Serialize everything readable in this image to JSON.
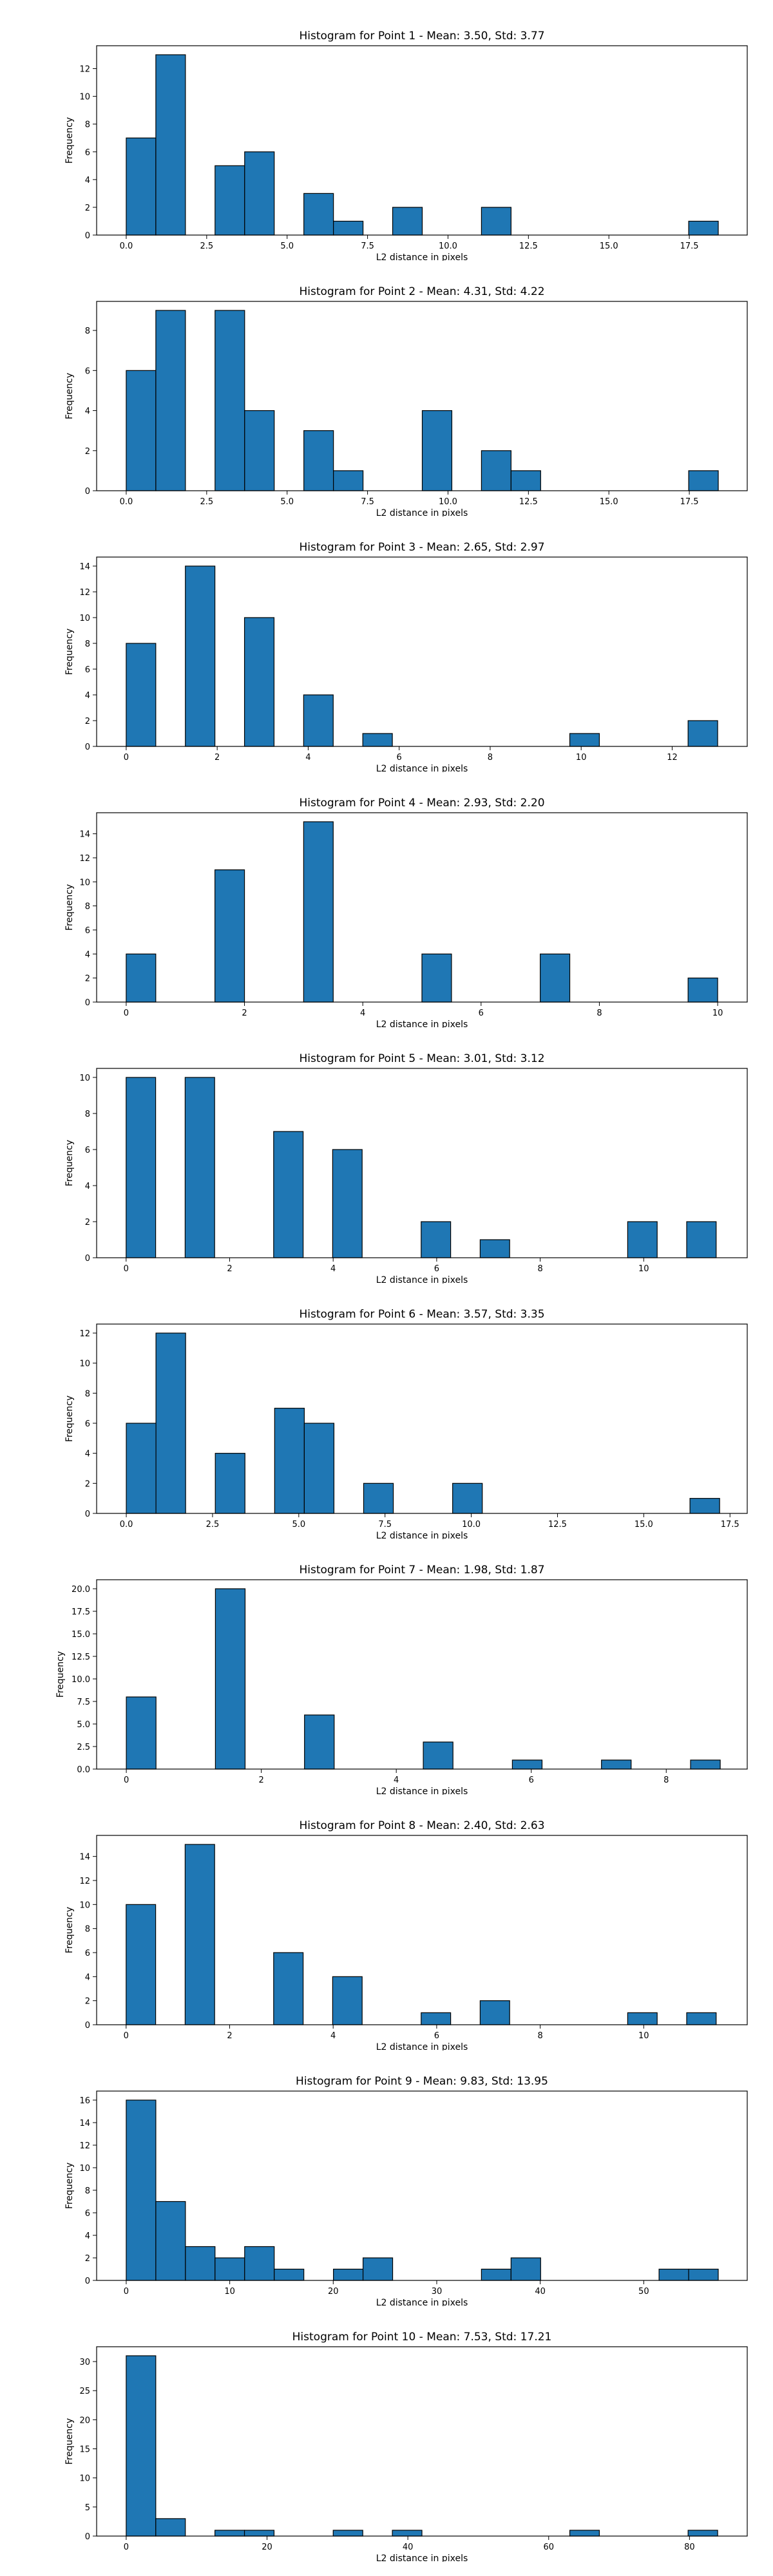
{
  "chart_data": [
    {
      "type": "bar",
      "title": "Histogram for Point 1 - Mean: 3.50, Std: 3.77",
      "xlabel": "L2 distance in pixels",
      "ylabel": "Frequency",
      "xlim": [
        -0.92,
        19.3
      ],
      "ylim": [
        0,
        13.65
      ],
      "xticks": [
        0.0,
        2.5,
        5.0,
        7.5,
        10.0,
        12.5,
        15.0,
        17.5
      ],
      "xtick_labels": [
        "0.0",
        "2.5",
        "5.0",
        "7.5",
        "10.0",
        "12.5",
        "15.0",
        "17.5"
      ],
      "yticks": [
        0,
        2,
        4,
        6,
        8,
        10,
        12
      ],
      "bin_start": 0.0,
      "bin_width": 0.92,
      "counts": [
        7,
        13,
        0,
        5,
        6,
        0,
        3,
        1,
        0,
        2,
        0,
        0,
        2,
        0,
        0,
        0,
        0,
        0,
        0,
        1
      ]
    },
    {
      "type": "bar",
      "title": "Histogram for Point 2 - Mean: 4.31, Std: 4.22",
      "xlabel": "L2 distance in pixels",
      "ylabel": "Frequency",
      "xlim": [
        -0.92,
        19.3
      ],
      "ylim": [
        0,
        9.45
      ],
      "xticks": [
        0.0,
        2.5,
        5.0,
        7.5,
        10.0,
        12.5,
        15.0,
        17.5
      ],
      "xtick_labels": [
        "0.0",
        "2.5",
        "5.0",
        "7.5",
        "10.0",
        "12.5",
        "15.0",
        "17.5"
      ],
      "yticks": [
        0,
        2,
        4,
        6,
        8
      ],
      "bin_start": 0.0,
      "bin_width": 0.92,
      "counts": [
        6,
        9,
        0,
        9,
        4,
        0,
        3,
        1,
        0,
        0,
        4,
        0,
        2,
        1,
        0,
        0,
        0,
        0,
        0,
        1
      ]
    },
    {
      "type": "bar",
      "title": "Histogram for Point 3 - Mean: 2.65, Std: 2.97",
      "xlabel": "L2 distance in pixels",
      "ylabel": "Frequency",
      "xlim": [
        -0.65,
        13.65
      ],
      "ylim": [
        0,
        14.7
      ],
      "xticks": [
        0,
        2,
        4,
        6,
        8,
        10,
        12
      ],
      "xtick_labels": [
        "0",
        "2",
        "4",
        "6",
        "8",
        "10",
        "12"
      ],
      "yticks": [
        0,
        2,
        4,
        6,
        8,
        10,
        12,
        14
      ],
      "bin_start": 0.0,
      "bin_width": 0.65,
      "counts": [
        8,
        0,
        14,
        0,
        10,
        0,
        4,
        0,
        1,
        0,
        0,
        0,
        0,
        0,
        0,
        1,
        0,
        0,
        0,
        2
      ]
    },
    {
      "type": "bar",
      "title": "Histogram for Point 4 - Mean: 2.93, Std: 2.20",
      "xlabel": "L2 distance in pixels",
      "ylabel": "Frequency",
      "xlim": [
        -0.5,
        10.5
      ],
      "ylim": [
        0,
        15.75
      ],
      "xticks": [
        0,
        2,
        4,
        6,
        8,
        10
      ],
      "xtick_labels": [
        "0",
        "2",
        "4",
        "6",
        "8",
        "10"
      ],
      "yticks": [
        0,
        2,
        4,
        6,
        8,
        10,
        12,
        14
      ],
      "bin_start": 0.0,
      "bin_width": 0.5,
      "counts": [
        4,
        0,
        0,
        11,
        0,
        0,
        15,
        0,
        0,
        0,
        4,
        0,
        0,
        0,
        4,
        0,
        0,
        0,
        0,
        2
      ]
    },
    {
      "type": "bar",
      "title": "Histogram for Point 5 - Mean: 3.01, Std: 3.12",
      "xlabel": "L2 distance in pixels",
      "ylabel": "Frequency",
      "xlim": [
        -0.57,
        12.0
      ],
      "ylim": [
        0,
        10.5
      ],
      "xticks": [
        0,
        2,
        4,
        6,
        8,
        10
      ],
      "xtick_labels": [
        "0",
        "2",
        "4",
        "6",
        "8",
        "10"
      ],
      "yticks": [
        0,
        2,
        4,
        6,
        8,
        10
      ],
      "bin_start": 0.0,
      "bin_width": 0.57,
      "counts": [
        10,
        0,
        10,
        0,
        0,
        7,
        0,
        6,
        0,
        0,
        2,
        0,
        1,
        0,
        0,
        0,
        0,
        2,
        0,
        2
      ]
    },
    {
      "type": "bar",
      "title": "Histogram for Point 6 - Mean: 3.57, Std: 3.35",
      "xlabel": "L2 distance in pixels",
      "ylabel": "Frequency",
      "xlim": [
        -0.86,
        18.0
      ],
      "ylim": [
        0,
        12.6
      ],
      "xticks": [
        0.0,
        2.5,
        5.0,
        7.5,
        10.0,
        12.5,
        15.0,
        17.5
      ],
      "xtick_labels": [
        "0.0",
        "2.5",
        "5.0",
        "7.5",
        "10.0",
        "12.5",
        "15.0",
        "17.5"
      ],
      "yticks": [
        0,
        2,
        4,
        6,
        8,
        10,
        12
      ],
      "bin_start": 0.0,
      "bin_width": 0.86,
      "counts": [
        6,
        12,
        0,
        4,
        0,
        7,
        6,
        0,
        2,
        0,
        0,
        2,
        0,
        0,
        0,
        0,
        0,
        0,
        0,
        1
      ]
    },
    {
      "type": "bar",
      "title": "Histogram for Point 7 - Mean: 1.98, Std: 1.87",
      "xlabel": "L2 distance in pixels",
      "ylabel": "Frequency",
      "xlim": [
        -0.44,
        9.2
      ],
      "ylim": [
        0,
        21.0
      ],
      "xticks": [
        0,
        2,
        4,
        6,
        8
      ],
      "xtick_labels": [
        "0",
        "2",
        "4",
        "6",
        "8"
      ],
      "yticks": [
        0.0,
        2.5,
        5.0,
        7.5,
        10.0,
        12.5,
        15.0,
        17.5,
        20.0
      ],
      "ytick_labels": [
        "0.0",
        "2.5",
        "5.0",
        "7.5",
        "10.0",
        "12.5",
        "15.0",
        "17.5",
        "20.0"
      ],
      "bin_start": 0.0,
      "bin_width": 0.44,
      "counts": [
        8,
        0,
        0,
        20,
        0,
        0,
        6,
        0,
        0,
        0,
        3,
        0,
        0,
        1,
        0,
        0,
        1,
        0,
        0,
        1
      ]
    },
    {
      "type": "bar",
      "title": "Histogram for Point 8 - Mean: 2.40, Std: 2.63",
      "xlabel": "L2 distance in pixels",
      "ylabel": "Frequency",
      "xlim": [
        -0.57,
        12.0
      ],
      "ylim": [
        0,
        15.75
      ],
      "xticks": [
        0,
        2,
        4,
        6,
        8,
        10
      ],
      "xtick_labels": [
        "0",
        "2",
        "4",
        "6",
        "8",
        "10"
      ],
      "yticks": [
        0,
        2,
        4,
        6,
        8,
        10,
        12,
        14
      ],
      "bin_start": 0.0,
      "bin_width": 0.57,
      "counts": [
        10,
        0,
        15,
        0,
        0,
        6,
        0,
        4,
        0,
        0,
        1,
        0,
        2,
        0,
        0,
        0,
        0,
        1,
        0,
        1
      ]
    },
    {
      "type": "bar",
      "title": "Histogram for Point 9 - Mean: 9.83, Std: 13.95",
      "xlabel": "L2 distance in pixels",
      "ylabel": "Frequency",
      "xlim": [
        -2.86,
        60.0
      ],
      "ylim": [
        0,
        16.8
      ],
      "xticks": [
        0,
        10,
        20,
        30,
        40,
        50
      ],
      "xtick_labels": [
        "0",
        "10",
        "20",
        "30",
        "40",
        "50"
      ],
      "yticks": [
        0,
        2,
        4,
        6,
        8,
        10,
        12,
        14,
        16
      ],
      "bin_start": 0.0,
      "bin_width": 2.86,
      "counts": [
        16,
        7,
        3,
        2,
        3,
        1,
        0,
        1,
        2,
        0,
        0,
        0,
        1,
        2,
        0,
        0,
        0,
        0,
        1,
        1
      ]
    },
    {
      "type": "bar",
      "title": "Histogram for Point 10 - Mean: 7.53, Std: 17.21",
      "xlabel": "L2 distance in pixels",
      "ylabel": "Frequency",
      "xlim": [
        -4.2,
        88.2
      ],
      "ylim": [
        0,
        32.55
      ],
      "xticks": [
        0,
        20,
        40,
        60,
        80
      ],
      "xtick_labels": [
        "0",
        "20",
        "40",
        "60",
        "80"
      ],
      "yticks": [
        0,
        5,
        10,
        15,
        20,
        25,
        30
      ],
      "bin_start": 0.0,
      "bin_width": 4.2,
      "counts": [
        31,
        3,
        0,
        1,
        1,
        0,
        0,
        1,
        0,
        1,
        0,
        0,
        0,
        0,
        0,
        1,
        0,
        0,
        0,
        1
      ]
    }
  ]
}
